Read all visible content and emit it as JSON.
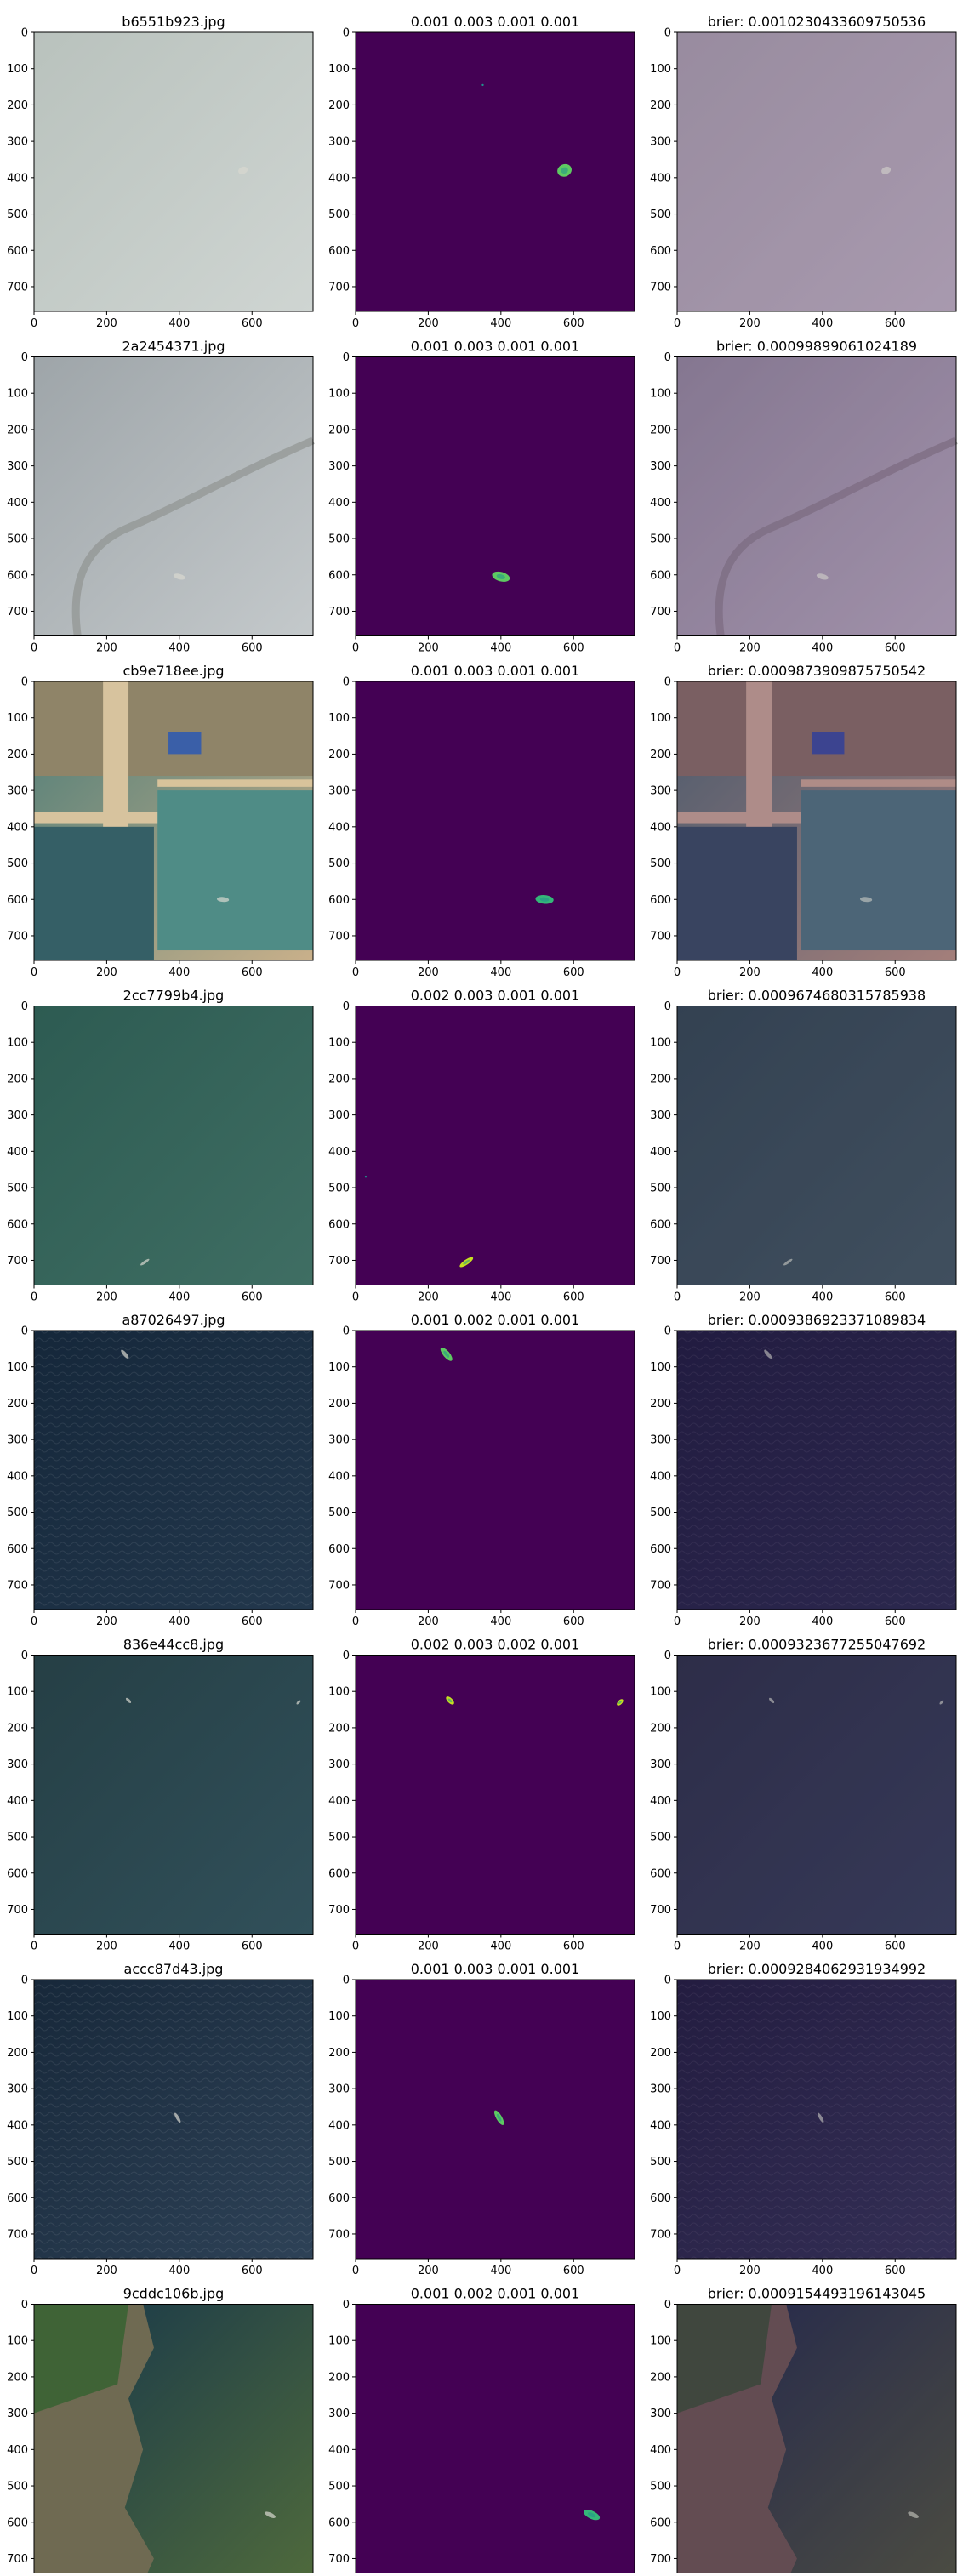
{
  "figure": {
    "rows": 8,
    "cols": 3,
    "axis": {
      "ticks_x": [
        0,
        200,
        400,
        600
      ],
      "ticks_y": [
        0,
        100,
        200,
        300,
        400,
        500,
        600,
        700
      ],
      "xlim": [
        0,
        768
      ],
      "ylim": [
        768,
        0
      ]
    },
    "colors": {
      "mask_background": "#440154",
      "mask_mid": "#21918c",
      "mask_high": "#5ec962",
      "mask_peak": "#fde725"
    }
  },
  "chart_data": [
    {
      "type": "heatmap",
      "row": 1,
      "title_image": "b6551b923.jpg",
      "title_mask": "0.001  0.003  0.001  0.001",
      "title_overlay": "brier: 0.0010230433609750536",
      "scene": {
        "kind": "haze",
        "base": "#b9c2bd",
        "base2": "#cfd5d2"
      },
      "ship_masks": [
        {
          "x": 575,
          "y": 380,
          "w": 40,
          "h": 34,
          "angle": -20,
          "color": "#5ec962"
        }
      ],
      "noise_points": [
        {
          "x": 350,
          "y": 145
        }
      ]
    },
    {
      "type": "heatmap",
      "row": 2,
      "title_image": "2a2454371.jpg",
      "title_mask": "0.001  0.003  0.001  0.001",
      "title_overlay": "brier: 0.00099899061024189",
      "scene": {
        "kind": "haze-coast",
        "base": "#9ea5a9",
        "base2": "#c4c9cb"
      },
      "ship_masks": [
        {
          "x": 400,
          "y": 605,
          "w": 50,
          "h": 26,
          "angle": 15,
          "color": "#5ec962"
        }
      ],
      "noise_points": []
    },
    {
      "type": "heatmap",
      "row": 3,
      "title_image": "cb9e718ee.jpg",
      "title_mask": "0.001  0.003  0.001  0.001",
      "title_overlay": "brier: 0.0009873909875750542",
      "scene": {
        "kind": "port",
        "base": "#4e7d78",
        "base2": "#c9b08a"
      },
      "ship_masks": [
        {
          "x": 520,
          "y": 600,
          "w": 50,
          "h": 24,
          "angle": 5,
          "color": "#35b779"
        }
      ],
      "noise_points": []
    },
    {
      "type": "heatmap",
      "row": 4,
      "title_image": "2cc7799b4.jpg",
      "title_mask": "0.002  0.003  0.001  0.001",
      "title_overlay": "brier: 0.0009674680315785938",
      "scene": {
        "kind": "sea-green",
        "base": "#2d5b52",
        "base2": "#3f6e63"
      },
      "ship_masks": [
        {
          "x": 305,
          "y": 705,
          "w": 44,
          "h": 14,
          "angle": -35,
          "color": "#c6e020"
        }
      ],
      "noise_points": [
        {
          "x": 28,
          "y": 470
        }
      ]
    },
    {
      "type": "heatmap",
      "row": 5,
      "title_image": "a87026497.jpg",
      "title_mask": "0.001  0.002  0.001  0.001",
      "title_overlay": "brier: 0.0009386923371089834",
      "scene": {
        "kind": "sea-dark",
        "base": "#15273a",
        "base2": "#23384d"
      },
      "ship_masks": [
        {
          "x": 250,
          "y": 65,
          "w": 46,
          "h": 18,
          "angle": 50,
          "color": "#5ec962"
        }
      ],
      "noise_points": []
    },
    {
      "type": "heatmap",
      "row": 6,
      "title_image": "836e44cc8.jpg",
      "title_mask": "0.002  0.003  0.002  0.001",
      "title_overlay": "brier: 0.0009323677255047692",
      "scene": {
        "kind": "sea-teal",
        "base": "#253f45",
        "base2": "#31505a"
      },
      "ship_masks": [
        {
          "x": 260,
          "y": 125,
          "w": 28,
          "h": 14,
          "angle": 45,
          "color": "#c6e020"
        },
        {
          "x": 728,
          "y": 130,
          "w": 22,
          "h": 12,
          "angle": -45,
          "color": "#c6e020"
        }
      ],
      "noise_points": []
    },
    {
      "type": "heatmap",
      "row": 7,
      "title_image": "accc87d43.jpg",
      "title_mask": "0.001  0.003  0.001  0.001",
      "title_overlay": "brier: 0.0009284062931934992",
      "scene": {
        "kind": "sea-waves",
        "base": "#17283a",
        "base2": "#2e4257"
      },
      "ship_masks": [
        {
          "x": 395,
          "y": 380,
          "w": 46,
          "h": 16,
          "angle": 60,
          "color": "#5ec962"
        }
      ],
      "noise_points": []
    },
    {
      "type": "heatmap",
      "row": 8,
      "title_image": "9cddc106b.jpg",
      "title_mask": "0.001  0.002  0.001  0.001",
      "title_overlay": "brier: 0.0009154493196143045",
      "scene": {
        "kind": "coast-land",
        "base": "#16364a",
        "base2": "#4f6a3c"
      },
      "ship_masks": [
        {
          "x": 650,
          "y": 580,
          "w": 48,
          "h": 22,
          "angle": 25,
          "color": "#35b779"
        }
      ],
      "noise_points": []
    }
  ]
}
